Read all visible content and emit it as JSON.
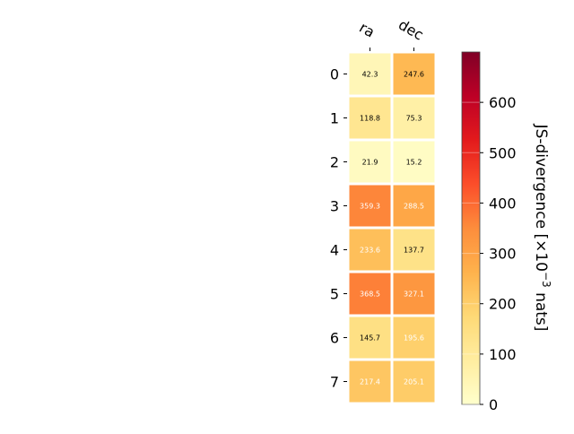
{
  "chart_data": {
    "type": "heatmap",
    "columns": [
      "ra",
      "dec"
    ],
    "rows": [
      "0",
      "1",
      "2",
      "3",
      "4",
      "5",
      "6",
      "7"
    ],
    "values": [
      [
        42.3,
        247.6
      ],
      [
        118.8,
        75.3
      ],
      [
        21.9,
        15.2
      ],
      [
        359.3,
        288.5
      ],
      [
        233.6,
        137.7
      ],
      [
        368.5,
        327.1
      ],
      [
        145.7,
        195.6
      ],
      [
        217.4,
        205.1
      ]
    ],
    "value_labels": [
      [
        "42.3",
        "247.6"
      ],
      [
        "118.8",
        "75.3"
      ],
      [
        "21.9",
        "15.2"
      ],
      [
        "359.3",
        "288.5"
      ],
      [
        "233.6",
        "137.7"
      ],
      [
        "368.5",
        "327.1"
      ],
      [
        "145.7",
        "195.6"
      ],
      [
        "217.4",
        "205.1"
      ]
    ],
    "colorbar": {
      "label_prefix": "JS-divergence [×10",
      "label_exponent": "−3",
      "label_suffix": " nats]",
      "range": [
        0,
        700
      ],
      "ticks": [
        0,
        100,
        200,
        300,
        400,
        500,
        600
      ],
      "tick_labels": [
        "0",
        "100",
        "200",
        "300",
        "400",
        "500",
        "600"
      ],
      "colormap": "YlOrRd"
    },
    "colors": {
      "cell_border": "#ffffff",
      "text_dark": "#000000",
      "text_light": "#ffffff"
    }
  }
}
